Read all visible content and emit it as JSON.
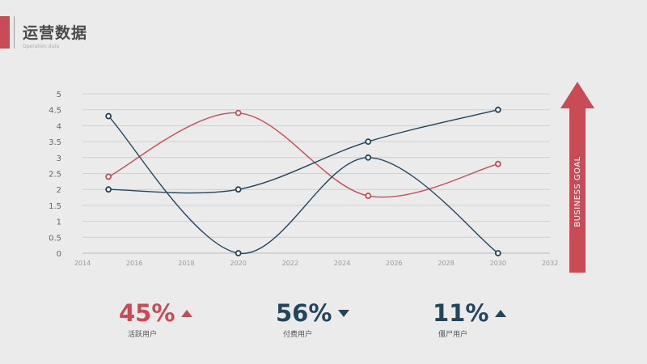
{
  "header": {
    "title": "运营数据",
    "subtitle": "Operation data"
  },
  "colors": {
    "red": "#c84b55",
    "navy": "#22455e",
    "background": "#ebebeb"
  },
  "chart_data": {
    "type": "line",
    "x_ticks": [
      "2014",
      "2016",
      "2018",
      "2020",
      "2022",
      "2024",
      "2026",
      "2028",
      "2030",
      "2032"
    ],
    "y_ticks": [
      "0",
      "0.5",
      "1",
      "1.5",
      "2",
      "2.5",
      "3",
      "3.5",
      "4",
      "4.5",
      "5"
    ],
    "xlim": [
      2014,
      2032
    ],
    "ylim": [
      0,
      5
    ],
    "grid": "horizontal",
    "series": [
      {
        "color": "#c84b55",
        "x": [
          2015,
          2020,
          2025,
          2030
        ],
        "y": [
          2.4,
          4.4,
          1.8,
          2.8
        ]
      },
      {
        "color": "#22455e",
        "x": [
          2015,
          2020,
          2025,
          2030
        ],
        "y": [
          4.3,
          0,
          3.0,
          0
        ]
      },
      {
        "color": "#22455e",
        "x": [
          2015,
          2020,
          2025,
          2030
        ],
        "y": [
          2.0,
          2.0,
          3.5,
          4.5
        ]
      }
    ]
  },
  "goal_arrow": {
    "label": "BUSINESS GOAL"
  },
  "stats": [
    {
      "value": "45%",
      "label": "活跃用户",
      "color": "#c84b55",
      "trend": "up"
    },
    {
      "value": "56%",
      "label": "付费用户",
      "color": "#22455e",
      "trend": "down"
    },
    {
      "value": "11%",
      "label": "僵尸用户",
      "color": "#22455e",
      "trend": "up"
    }
  ]
}
